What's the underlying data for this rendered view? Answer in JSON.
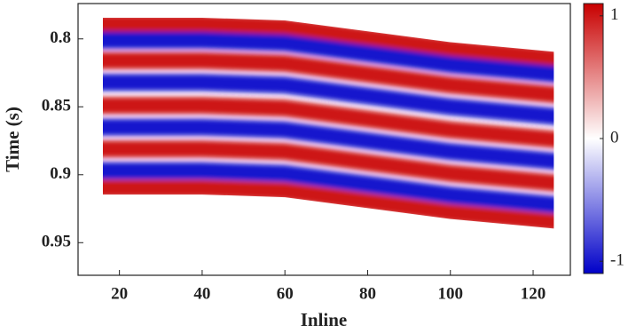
{
  "chart_data": {
    "type": "seismic-image",
    "x_label": "Inline",
    "y_label": "Time (s)",
    "xlim": [
      10,
      129
    ],
    "xticks": [
      20,
      40,
      60,
      80,
      100,
      120
    ],
    "ylim": [
      0.774,
      0.974
    ],
    "yticks": [
      0.8,
      0.85,
      0.9,
      0.95
    ],
    "y_reversed": true,
    "clim": [
      -1.1,
      1.1
    ],
    "colorbar_ticks": [
      1,
      0,
      -1
    ],
    "colors": {
      "negative": "#0000c8",
      "zero": "#ffffff",
      "positive": "#c80000"
    },
    "x": [
      16,
      40,
      60,
      80,
      100,
      125
    ],
    "bands": [
      {
        "amplitude": 1,
        "values": [
          0.789,
          0.789,
          0.791,
          0.799,
          0.807,
          0.814
        ]
      },
      {
        "amplitude": -1,
        "values": [
          0.801,
          0.801,
          0.803,
          0.811,
          0.819,
          0.826
        ]
      },
      {
        "amplitude": 1,
        "values": [
          0.816,
          0.816,
          0.818,
          0.826,
          0.834,
          0.841
        ]
      },
      {
        "amplitude": -1,
        "values": [
          0.832,
          0.832,
          0.834,
          0.842,
          0.85,
          0.857
        ]
      },
      {
        "amplitude": 1,
        "values": [
          0.849,
          0.849,
          0.851,
          0.859,
          0.867,
          0.874
        ]
      },
      {
        "amplitude": -1,
        "values": [
          0.865,
          0.865,
          0.867,
          0.875,
          0.883,
          0.89
        ]
      },
      {
        "amplitude": 1,
        "values": [
          0.881,
          0.881,
          0.883,
          0.891,
          0.899,
          0.906
        ]
      },
      {
        "amplitude": -1,
        "values": [
          0.897,
          0.897,
          0.899,
          0.907,
          0.915,
          0.922
        ]
      },
      {
        "amplitude": 1,
        "values": [
          0.91,
          0.91,
          0.912,
          0.92,
          0.928,
          0.935
        ]
      }
    ]
  }
}
